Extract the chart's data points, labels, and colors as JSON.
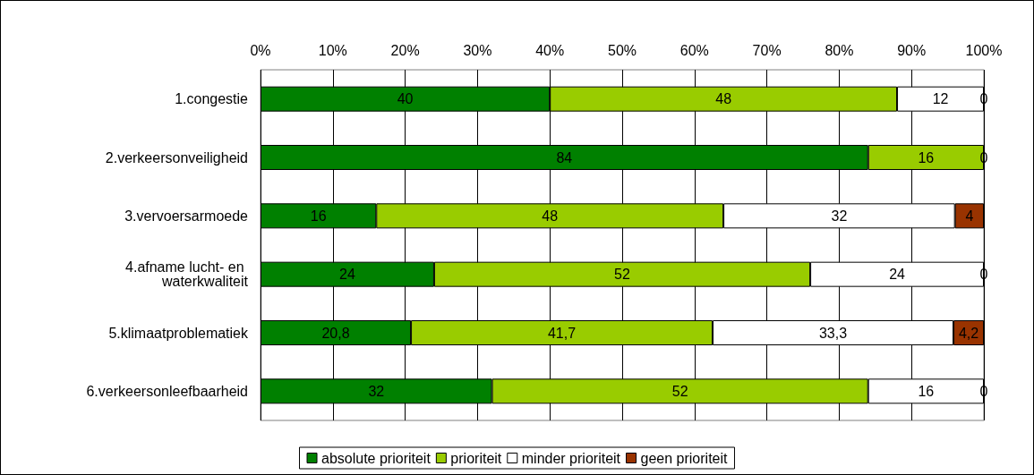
{
  "chart_data": {
    "type": "bar",
    "orientation": "horizontal",
    "stacked": true,
    "categories": [
      "1.congestie",
      "2.verkeersonveiligheid",
      "3.vervoersarmoede",
      "4.afname lucht- en waterkwaliteit",
      "5.klimaatproblematiek",
      "6.verkeersonleefbaarheid"
    ],
    "series": [
      {
        "name": "absolute prioriteit",
        "color": "#008000",
        "values": [
          40,
          84,
          16,
          24,
          20.8,
          32
        ],
        "value_labels": [
          "40",
          "84",
          "16",
          "24",
          "20,8",
          "32"
        ]
      },
      {
        "name": "prioriteit",
        "color": "#99cc00",
        "values": [
          48,
          16,
          48,
          52,
          41.7,
          52
        ],
        "value_labels": [
          "48",
          "16",
          "48",
          "52",
          "41,7",
          "52"
        ]
      },
      {
        "name": "minder prioriteit",
        "color": "#ffffff",
        "values": [
          12,
          0,
          32,
          24,
          33.3,
          16
        ],
        "value_labels": [
          "12",
          null,
          "32",
          "24",
          "33,3",
          "16"
        ]
      },
      {
        "name": "geen prioriteit",
        "color": "#993300",
        "values": [
          0,
          0,
          4,
          0,
          4.2,
          0
        ],
        "value_labels": [
          "0",
          "0",
          "4",
          "0",
          "4,2",
          "0"
        ]
      }
    ],
    "xlim": [
      0,
      100
    ],
    "xticks": [
      {
        "value": 0,
        "label": "0%"
      },
      {
        "value": 10,
        "label": "10%"
      },
      {
        "value": 20,
        "label": "20%"
      },
      {
        "value": 30,
        "label": "30%"
      },
      {
        "value": 40,
        "label": "40%"
      },
      {
        "value": 50,
        "label": "50%"
      },
      {
        "value": 60,
        "label": "60%"
      },
      {
        "value": 70,
        "label": "70%"
      },
      {
        "value": 80,
        "label": "80%"
      },
      {
        "value": 90,
        "label": "90%"
      },
      {
        "value": 100,
        "label": "100%"
      }
    ],
    "grid": "x",
    "legend": "bottom"
  }
}
